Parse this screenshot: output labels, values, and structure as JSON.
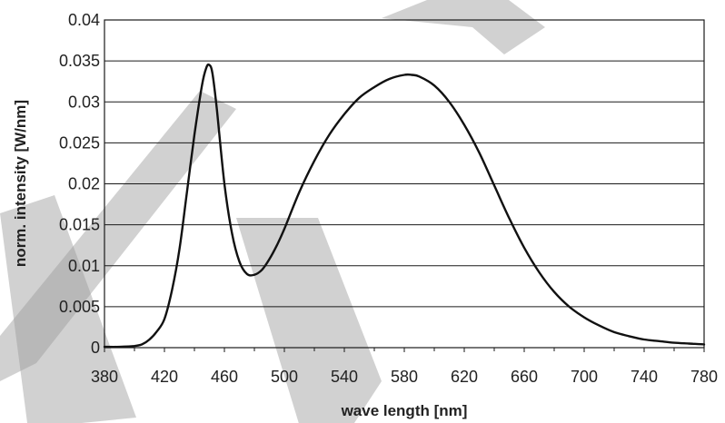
{
  "chart_data": {
    "type": "line",
    "title": "",
    "xlabel": "wave length [nm]",
    "ylabel": "norm. intensity [W/nm]",
    "xlim": [
      380,
      780
    ],
    "ylim": [
      0,
      0.04
    ],
    "x_ticks": [
      380,
      420,
      460,
      500,
      540,
      580,
      620,
      660,
      700,
      740,
      780
    ],
    "x_tick_labels": [
      "380",
      "420",
      "460",
      "500",
      "540",
      "580",
      "620",
      "660",
      "700",
      "740",
      "780"
    ],
    "y_ticks": [
      0,
      0.005,
      0.01,
      0.015,
      0.02,
      0.025,
      0.03,
      0.035,
      0.04
    ],
    "y_tick_labels": [
      "0",
      "0.005",
      "0.01",
      "0.015",
      "0.02",
      "0.025",
      "0.03",
      "0.035",
      "0.04"
    ],
    "grid": "horizontal",
    "legend": "none",
    "line_color": "#111111",
    "series": [
      {
        "x": [
          380,
          390,
          400,
          405,
          410,
          415,
          420,
          425,
          430,
          435,
          440,
          445,
          448,
          450,
          452,
          455,
          460,
          465,
          470,
          475,
          480,
          485,
          490,
          495,
          500,
          510,
          520,
          530,
          540,
          550,
          560,
          570,
          580,
          585,
          590,
          600,
          610,
          620,
          630,
          640,
          650,
          660,
          670,
          680,
          690,
          700,
          710,
          720,
          730,
          740,
          750,
          760,
          770,
          780
        ],
        "y": [
          0.0001,
          0.0001,
          0.0002,
          0.0004,
          0.001,
          0.002,
          0.0035,
          0.007,
          0.012,
          0.019,
          0.026,
          0.032,
          0.0342,
          0.0345,
          0.0335,
          0.029,
          0.02,
          0.014,
          0.0105,
          0.009,
          0.0089,
          0.0095,
          0.0108,
          0.0125,
          0.0145,
          0.019,
          0.0228,
          0.026,
          0.0285,
          0.0305,
          0.0318,
          0.0328,
          0.0333,
          0.0333,
          0.0331,
          0.032,
          0.03,
          0.0272,
          0.0238,
          0.0198,
          0.0158,
          0.0122,
          0.0092,
          0.0068,
          0.005,
          0.0037,
          0.0027,
          0.0019,
          0.0014,
          0.001,
          0.0008,
          0.0006,
          0.0005,
          0.0004
        ]
      }
    ]
  }
}
